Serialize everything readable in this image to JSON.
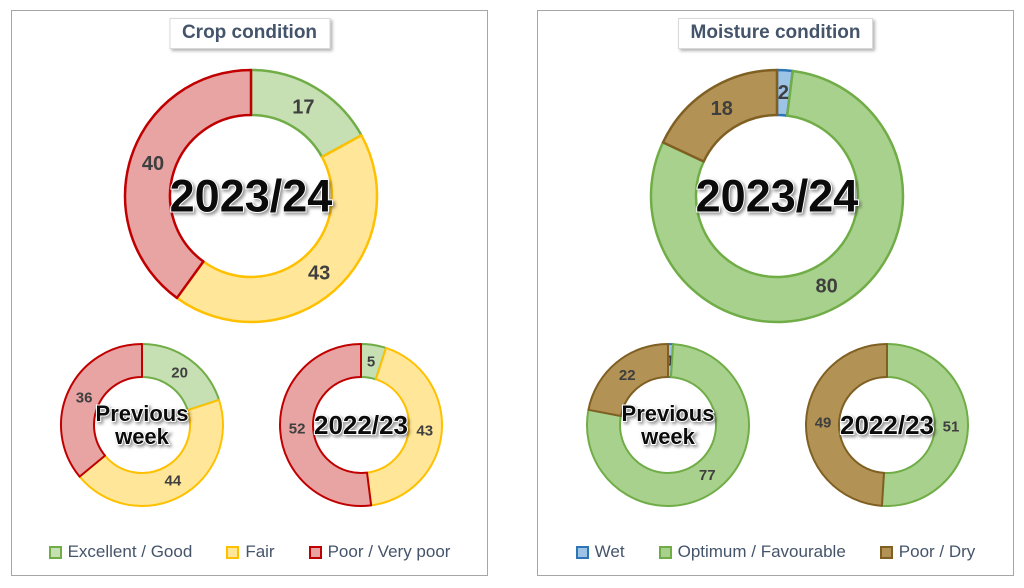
{
  "chart_data": [
    {
      "type": "pie",
      "variant": "donut-small-multiples",
      "title": "Crop condition",
      "categories": [
        "Excellent / Good",
        "Fair",
        "Poor / Very poor"
      ],
      "colors": {
        "fills": [
          "#c6e0b4",
          "#ffe699",
          "#e8a3a3"
        ],
        "strokes": [
          "#70ad47",
          "#ffc000",
          "#c00000"
        ]
      },
      "legend_position": "bottom",
      "donuts": [
        {
          "label": "2023/24",
          "label_lines": [
            "2023/24"
          ],
          "values": [
            17,
            43,
            40
          ]
        },
        {
          "label": "Previous week",
          "label_lines": [
            "Previous",
            "week"
          ],
          "values": [
            20,
            44,
            36
          ]
        },
        {
          "label": "2022/23",
          "label_lines": [
            "2022/23"
          ],
          "values": [
            5,
            43,
            52
          ]
        }
      ]
    },
    {
      "type": "pie",
      "variant": "donut-small-multiples",
      "title": "Moisture condition",
      "categories": [
        "Wet",
        "Optimum / Favourable",
        "Poor / Dry"
      ],
      "colors": {
        "fills": [
          "#9dc3e6",
          "#a9d18e",
          "#b39355"
        ],
        "strokes": [
          "#2e75b6",
          "#70ad47",
          "#7f6022"
        ]
      },
      "legend_position": "bottom",
      "donuts": [
        {
          "label": "2023/24",
          "label_lines": [
            "2023/24"
          ],
          "values": [
            2,
            80,
            18
          ]
        },
        {
          "label": "Previous week",
          "label_lines": [
            "Previous",
            "week"
          ],
          "values": [
            1,
            77,
            22
          ]
        },
        {
          "label": "2022/23",
          "label_lines": [
            "2022/23"
          ],
          "values": [
            0,
            51,
            49
          ]
        }
      ]
    }
  ]
}
